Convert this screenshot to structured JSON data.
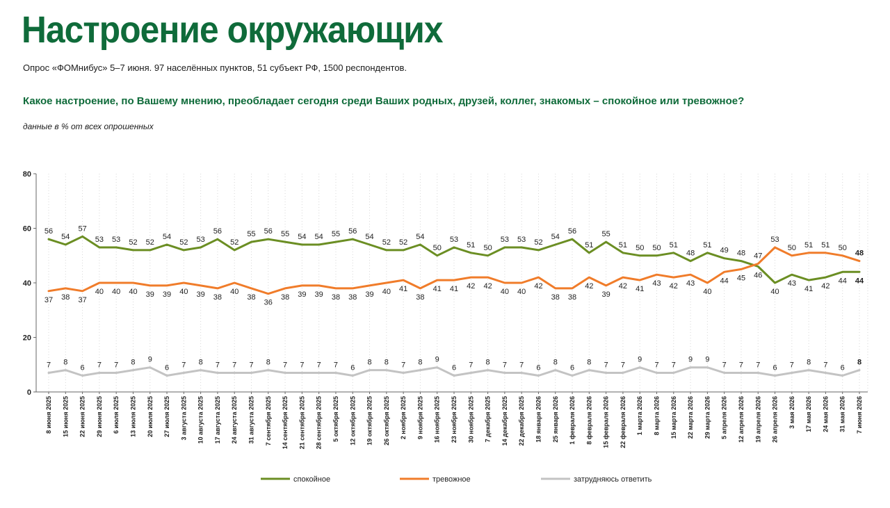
{
  "header": {
    "title": "Настроение окружающих",
    "subtitle": "Опрос «ФОМнибус» 5–7 июня. 97 населённых пунктов, 51 субъект РФ, 1500 респондентов.",
    "question": "Какое настроение, по Вашему мнению, преобладает сегодня среди Ваших родных, друзей, коллег, знакомых – спокойное или тревожное?",
    "note": "данные в % от всех опрошенных"
  },
  "colors": {
    "calm": "#6b8e23",
    "anxious": "#f07c2a",
    "unsure": "#c3c3c3",
    "grid": "#d7d7d7",
    "axis": "#666666"
  },
  "chart_data": {
    "type": "line",
    "ylim": [
      0,
      80
    ],
    "yticks": [
      0,
      20,
      40,
      60,
      80
    ],
    "grid": "vertical dotted",
    "legend_position": "bottom",
    "x": [
      "8 июня 2025",
      "15 июня 2025",
      "22 июня 2025",
      "29 июня 2025",
      "6 июля 2025",
      "13 июля 2025",
      "20 июля 2025",
      "27 июля 2025",
      "3 августа 2025",
      "10 августа 2025",
      "17 августа 2025",
      "24 августа 2025",
      "31 августа 2025",
      "7 сентября 2025",
      "14 сентября 2025",
      "21 сентября 2025",
      "28 сентября 2025",
      "5 октября 2025",
      "12 октября 2025",
      "19 октября 2025",
      "26 октября 2025",
      "2 ноября 2025",
      "9 ноября 2025",
      "16 ноября 2025",
      "23 ноября 2025",
      "30 ноября 2025",
      "7 декабря 2025",
      "14 декабря 2025",
      "22 декабря 2025",
      "18 января 2026",
      "25 января 2026",
      "1 февраля 2026",
      "8 февраля 2026",
      "15 февраля 2026",
      "22 февраля 2026",
      "1 марта 2026",
      "8 марта 2026",
      "15 марта 2026",
      "22 марта 2026",
      "29 марта 2026",
      "5 апреля 2026",
      "12 апреля 2026",
      "19 апреля 2026",
      "26 апреля 2026",
      "3 мая 2026",
      "17 мая 2026",
      "24 мая 2026",
      "31 мая 2026",
      "7 июня 2026"
    ],
    "series": [
      {
        "name": "спокойное",
        "color": "#6b8e23",
        "values": [
          56,
          54,
          57,
          53,
          53,
          52,
          52,
          54,
          52,
          53,
          56,
          52,
          55,
          56,
          55,
          54,
          54,
          55,
          56,
          54,
          52,
          52,
          54,
          50,
          53,
          51,
          50,
          53,
          53,
          52,
          54,
          56,
          51,
          55,
          51,
          50,
          50,
          51,
          48,
          51,
          49,
          48,
          46,
          40,
          43,
          41,
          42,
          44,
          44
        ]
      },
      {
        "name": "тревожное",
        "color": "#f07c2a",
        "values": [
          37,
          38,
          37,
          40,
          40,
          40,
          39,
          39,
          40,
          39,
          38,
          40,
          38,
          36,
          38,
          39,
          39,
          38,
          38,
          39,
          40,
          41,
          38,
          41,
          41,
          42,
          42,
          40,
          40,
          42,
          38,
          38,
          42,
          39,
          42,
          41,
          43,
          42,
          43,
          40,
          44,
          45,
          47,
          53,
          50,
          51,
          51,
          50,
          48
        ]
      },
      {
        "name": "затрудняюсь ответить",
        "color": "#c3c3c3",
        "values": [
          7,
          8,
          6,
          7,
          7,
          8,
          9,
          6,
          7,
          8,
          7,
          7,
          7,
          8,
          7,
          7,
          7,
          7,
          6,
          8,
          8,
          7,
          8,
          9,
          6,
          7,
          8,
          7,
          7,
          6,
          8,
          6,
          8,
          7,
          7,
          9,
          7,
          7,
          9,
          9,
          7,
          7,
          7,
          6,
          7,
          8,
          7,
          6,
          8
        ]
      }
    ]
  }
}
